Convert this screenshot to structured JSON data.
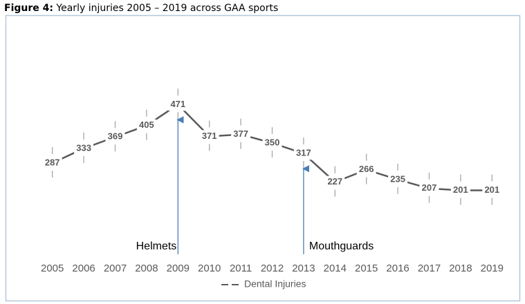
{
  "chart_data": {
    "type": "line",
    "figure_label": "Figure 4:",
    "title": "Yearly injuries 2005 – 2019 across GAA sports",
    "categories": [
      "2005",
      "2006",
      "2007",
      "2008",
      "2009",
      "2010",
      "2011",
      "2012",
      "2013",
      "2014",
      "2015",
      "2016",
      "2017",
      "2018",
      "2019"
    ],
    "series": [
      {
        "name": "Dental Injuries",
        "color": "#595959",
        "values": [
          287,
          333,
          369,
          405,
          471,
          371,
          377,
          350,
          317,
          227,
          266,
          235,
          207,
          201,
          201
        ],
        "errors": [
          50,
          50,
          50,
          50,
          50,
          50,
          50,
          50,
          50,
          50,
          50,
          50,
          50,
          50,
          50
        ]
      }
    ],
    "ylim": [
      0,
      600
    ],
    "annotations": [
      {
        "text": "Helmets",
        "x": "2009"
      },
      {
        "text": "Mouthguards",
        "x": "2013"
      }
    ],
    "legend": "bottom"
  }
}
